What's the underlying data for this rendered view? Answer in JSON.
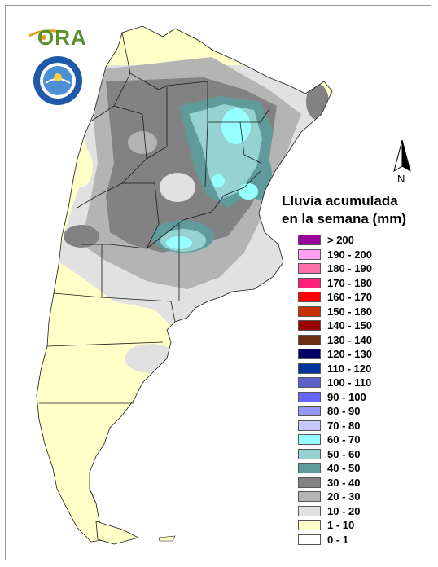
{
  "logo": {
    "text": "ORA"
  },
  "north_arrow": {
    "label": "N"
  },
  "legend": {
    "title_line1": "Lluvia acumulada",
    "title_line2": "en la semana (mm)",
    "items": [
      {
        "label": "> 200",
        "color": "#9b009b"
      },
      {
        "label": "190 - 200",
        "color": "#ff9ff0"
      },
      {
        "label": "180 - 190",
        "color": "#ff6fa8"
      },
      {
        "label": "170 - 180",
        "color": "#ff1f7a"
      },
      {
        "label": "160 - 170",
        "color": "#ff0000"
      },
      {
        "label": "150 - 160",
        "color": "#c83200"
      },
      {
        "label": "140 - 150",
        "color": "#9b0000"
      },
      {
        "label": "130 - 140",
        "color": "#6b2e12"
      },
      {
        "label": "120 - 130",
        "color": "#000064"
      },
      {
        "label": "110 - 120",
        "color": "#00329b"
      },
      {
        "label": "100 - 110",
        "color": "#5f5fc8"
      },
      {
        "label": "90 - 100",
        "color": "#6464ff"
      },
      {
        "label": "80 - 90",
        "color": "#9696ff"
      },
      {
        "label": "70 - 80",
        "color": "#c8c8ff"
      },
      {
        "label": "60 - 70",
        "color": "#96ffff"
      },
      {
        "label": "50 - 60",
        "color": "#96d2d2"
      },
      {
        "label": "40 - 50",
        "color": "#5f9b9b"
      },
      {
        "label": "30 - 40",
        "color": "#828282"
      },
      {
        "label": "20 - 30",
        "color": "#b4b4b4"
      },
      {
        "label": "10 - 20",
        "color": "#e1e1e1"
      },
      {
        "label": "1 - 10",
        "color": "#ffffc8"
      },
      {
        "label": "0 - 1",
        "color": "#ffffff"
      }
    ]
  }
}
